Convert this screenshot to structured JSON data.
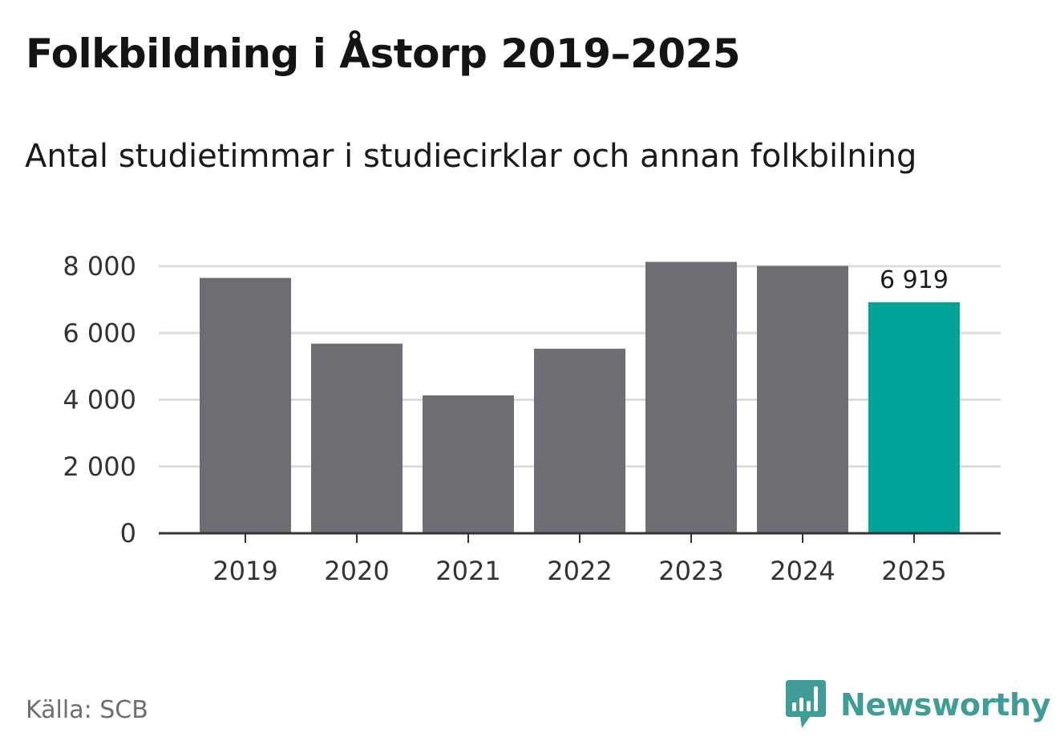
{
  "title": "Folkbildning i Åstorp 2019–2025",
  "subtitle": "Antal studietimmar i studiecirklar och annan folkbilning",
  "source": "Källa: SCB",
  "brand": {
    "name": "Newsworthy",
    "icon": "newsworthy-logo-icon"
  },
  "colors": {
    "bar": "#6e6d73",
    "highlight": "#00a398",
    "grid": "#dcdcdc",
    "axis": "#333333",
    "brand": "#3f9c97"
  },
  "chart_data": {
    "type": "bar",
    "title": "Folkbildning i Åstorp 2019–2025",
    "subtitle": "Antal studietimmar i studiecirklar och annan folkbilning",
    "xlabel": "",
    "ylabel": "",
    "categories": [
      "2019",
      "2020",
      "2021",
      "2022",
      "2023",
      "2024",
      "2025"
    ],
    "values": [
      7650,
      5680,
      4130,
      5530,
      8130,
      8010,
      6919
    ],
    "highlight_index": 6,
    "data_labels": [
      {
        "index": 6,
        "text": "6 919"
      }
    ],
    "ylim": [
      0,
      8000
    ],
    "yticks": [
      {
        "value": 0,
        "label": "0"
      },
      {
        "value": 2000,
        "label": "2 000"
      },
      {
        "value": 4000,
        "label": "4 000"
      },
      {
        "value": 6000,
        "label": "6 000"
      },
      {
        "value": 8000,
        "label": "8 000"
      }
    ],
    "grid": true,
    "legend": "none"
  }
}
